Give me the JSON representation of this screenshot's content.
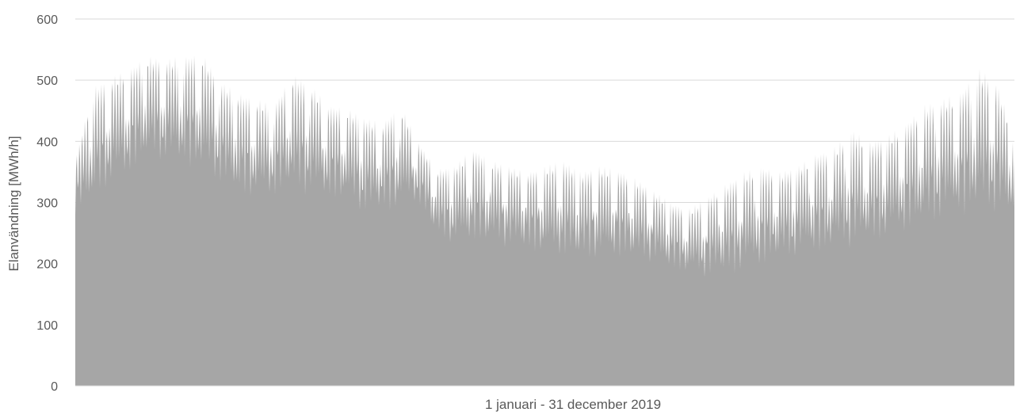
{
  "chart_data": {
    "type": "area",
    "title": "",
    "xlabel": "1 januari - 31 december 2019",
    "ylabel": "Elanvändning [MWh/h]",
    "ylim": [
      0,
      600
    ],
    "y_ticks": [
      0,
      100,
      200,
      300,
      400,
      500,
      600
    ],
    "grid": true,
    "legend": "none",
    "series_color": "#a6a6a6",
    "grid_color": "#d9d9d9",
    "x_start": "2019-01-01",
    "x_end": "2019-12-31",
    "x_resolution": "weekly",
    "series": [
      {
        "name": "",
        "x": [
          "2019-01-01",
          "2019-01-08",
          "2019-01-15",
          "2019-01-22",
          "2019-01-29",
          "2019-02-05",
          "2019-02-12",
          "2019-02-19",
          "2019-02-26",
          "2019-03-05",
          "2019-03-12",
          "2019-03-19",
          "2019-03-26",
          "2019-04-02",
          "2019-04-09",
          "2019-04-16",
          "2019-04-23",
          "2019-04-30",
          "2019-05-07",
          "2019-05-14",
          "2019-05-21",
          "2019-05-28",
          "2019-06-04",
          "2019-06-11",
          "2019-06-18",
          "2019-06-25",
          "2019-07-02",
          "2019-07-09",
          "2019-07-16",
          "2019-07-23",
          "2019-07-30",
          "2019-08-06",
          "2019-08-13",
          "2019-08-20",
          "2019-08-27",
          "2019-09-03",
          "2019-09-10",
          "2019-09-17",
          "2019-09-24",
          "2019-10-01",
          "2019-10-08",
          "2019-10-15",
          "2019-10-22",
          "2019-10-29",
          "2019-11-05",
          "2019-11-12",
          "2019-11-19",
          "2019-11-26",
          "2019-12-03",
          "2019-12-10",
          "2019-12-17",
          "2019-12-24",
          "2019-12-31"
        ],
        "low": [
          280,
          300,
          330,
          345,
          370,
          365,
          360,
          350,
          330,
          310,
          305,
          310,
          315,
          310,
          305,
          300,
          280,
          280,
          290,
          300,
          240,
          230,
          235,
          230,
          225,
          220,
          215,
          210,
          205,
          205,
          210,
          205,
          200,
          190,
          180,
          175,
          180,
          185,
          195,
          205,
          210,
          215,
          220,
          225,
          230,
          240,
          250,
          260,
          270,
          275,
          285,
          280,
          275
        ],
        "high": [
          370,
          490,
          505,
          520,
          540,
          535,
          540,
          545,
          500,
          480,
          470,
          460,
          510,
          495,
          460,
          455,
          440,
          430,
          460,
          400,
          355,
          360,
          390,
          370,
          360,
          350,
          360,
          370,
          350,
          360,
          355,
          340,
          320,
          300,
          290,
          310,
          330,
          350,
          360,
          350,
          360,
          380,
          390,
          420,
          400,
          410,
          430,
          460,
          470,
          480,
          520,
          500,
          410
        ]
      }
    ]
  }
}
